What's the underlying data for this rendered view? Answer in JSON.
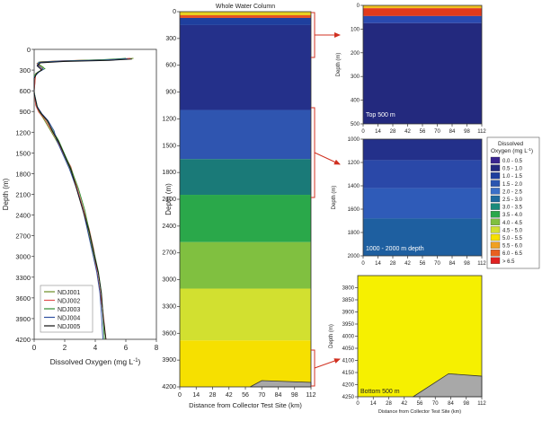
{
  "chart_data": [
    {
      "id": "profile",
      "type": "line",
      "xlabel": "Dissolved Oxygen (mg L",
      "xlabel_sup": "-1",
      "xlabel_close": ")",
      "ylabel": "Depth (m)",
      "xlim": [
        0,
        8
      ],
      "ylim": [
        4200,
        0
      ],
      "xticks": [
        "0",
        "2",
        "4",
        "6",
        "8"
      ],
      "yticks": [
        "0",
        "300",
        "600",
        "900",
        "1200",
        "1500",
        "1800",
        "2100",
        "2400",
        "2700",
        "3000",
        "3300",
        "3600",
        "3900",
        "4200"
      ],
      "series": [
        {
          "name": "NDJ001",
          "color": "#6b8e23",
          "points": [
            [
              6.5,
              130
            ],
            [
              5.0,
              150
            ],
            [
              2.0,
              165
            ],
            [
              0.5,
              180
            ],
            [
              0.2,
              200
            ],
            [
              0.6,
              260
            ],
            [
              0.5,
              300
            ],
            [
              0.1,
              350
            ],
            [
              0.0,
              600
            ],
            [
              0.1,
              800
            ],
            [
              0.3,
              900
            ],
            [
              0.6,
              1000
            ],
            [
              1.0,
              1150
            ],
            [
              1.4,
              1300
            ],
            [
              1.9,
              1500
            ],
            [
              2.3,
              1700
            ],
            [
              2.8,
              2000
            ],
            [
              3.2,
              2300
            ],
            [
              3.5,
              2600
            ],
            [
              3.8,
              2900
            ],
            [
              4.1,
              3200
            ],
            [
              4.3,
              3500
            ],
            [
              4.5,
              3800
            ],
            [
              4.6,
              4200
            ]
          ]
        },
        {
          "name": "NDJ002",
          "color": "#e05050",
          "points": [
            [
              6.3,
              130
            ],
            [
              4.8,
              150
            ],
            [
              1.8,
              165
            ],
            [
              0.4,
              180
            ],
            [
              0.2,
              210
            ],
            [
              0.5,
              270
            ],
            [
              0.4,
              310
            ],
            [
              0.1,
              360
            ],
            [
              0.0,
              610
            ],
            [
              0.1,
              810
            ],
            [
              0.3,
              910
            ],
            [
              0.7,
              1010
            ],
            [
              1.1,
              1160
            ],
            [
              1.5,
              1310
            ],
            [
              1.9,
              1500
            ],
            [
              2.4,
              1700
            ],
            [
              2.8,
              2000
            ],
            [
              3.2,
              2300
            ],
            [
              3.6,
              2600
            ],
            [
              3.9,
              2900
            ],
            [
              4.1,
              3200
            ],
            [
              4.3,
              3500
            ],
            [
              4.5,
              3800
            ],
            [
              4.7,
              4200
            ]
          ]
        },
        {
          "name": "NDJ003",
          "color": "#2e8b2e",
          "points": [
            [
              6.0,
              130
            ],
            [
              4.5,
              150
            ],
            [
              1.5,
              170
            ],
            [
              0.3,
              185
            ],
            [
              0.3,
              220
            ],
            [
              0.7,
              280
            ],
            [
              0.3,
              320
            ],
            [
              0.0,
              380
            ],
            [
              0.0,
              620
            ],
            [
              0.2,
              820
            ],
            [
              0.4,
              920
            ],
            [
              0.8,
              1020
            ],
            [
              1.2,
              1170
            ],
            [
              1.6,
              1320
            ],
            [
              2.0,
              1520
            ],
            [
              2.4,
              1720
            ],
            [
              2.9,
              2020
            ],
            [
              3.3,
              2320
            ],
            [
              3.6,
              2620
            ],
            [
              3.9,
              2920
            ],
            [
              4.2,
              3220
            ],
            [
              4.4,
              3520
            ],
            [
              4.5,
              3820
            ],
            [
              4.6,
              4200
            ]
          ]
        },
        {
          "name": "NDJ004",
          "color": "#3050a0",
          "points": [
            [
              6.1,
              135
            ],
            [
              4.6,
              155
            ],
            [
              1.6,
              170
            ],
            [
              0.3,
              190
            ],
            [
              0.2,
              230
            ],
            [
              0.6,
              290
            ],
            [
              0.3,
              330
            ],
            [
              0.0,
              400
            ],
            [
              0.0,
              630
            ],
            [
              0.2,
              830
            ],
            [
              0.5,
              930
            ],
            [
              0.9,
              1030
            ],
            [
              1.3,
              1180
            ],
            [
              1.5,
              1330
            ],
            [
              1.9,
              1530
            ],
            [
              2.3,
              1730
            ],
            [
              2.8,
              2030
            ],
            [
              3.2,
              2330
            ],
            [
              3.5,
              2630
            ],
            [
              3.8,
              2930
            ],
            [
              4.1,
              3230
            ],
            [
              4.3,
              3530
            ],
            [
              4.4,
              3830
            ],
            [
              4.5,
              4200
            ]
          ]
        },
        {
          "name": "NDJ005",
          "color": "#111111",
          "points": [
            [
              6.4,
              140
            ],
            [
              4.9,
              160
            ],
            [
              1.9,
              175
            ],
            [
              0.4,
              195
            ],
            [
              0.2,
              240
            ],
            [
              0.5,
              300
            ],
            [
              0.2,
              340
            ],
            [
              0.0,
              420
            ],
            [
              0.0,
              640
            ],
            [
              0.2,
              840
            ],
            [
              0.5,
              940
            ],
            [
              0.9,
              1040
            ],
            [
              1.2,
              1190
            ],
            [
              1.6,
              1340
            ],
            [
              2.0,
              1540
            ],
            [
              2.4,
              1740
            ],
            [
              2.8,
              2040
            ],
            [
              3.2,
              2340
            ],
            [
              3.6,
              2640
            ],
            [
              3.9,
              2940
            ],
            [
              4.2,
              3240
            ],
            [
              4.4,
              3540
            ],
            [
              4.5,
              3840
            ],
            [
              4.7,
              4200
            ]
          ]
        }
      ]
    },
    {
      "id": "whole",
      "type": "heatmap",
      "title": "Whole Water Column",
      "xlabel": "Distance from Collector Test Site (km)",
      "ylabel": "Depth (m)",
      "xlim": [
        0,
        112
      ],
      "ylim": [
        4200,
        0
      ],
      "xticks": [
        "0",
        "14",
        "28",
        "42",
        "56",
        "70",
        "84",
        "98",
        "112"
      ],
      "yticks": [
        "0",
        "300",
        "600",
        "900",
        "1200",
        "1500",
        "1800",
        "2100",
        "2400",
        "2700",
        "3000",
        "3300",
        "3600",
        "3900",
        "4200"
      ],
      "bands": [
        {
          "top": 0,
          "bottom": 40,
          "color": "#e8d020"
        },
        {
          "top": 40,
          "bottom": 70,
          "color": "#e85020"
        },
        {
          "top": 70,
          "bottom": 150,
          "color": "#1e3f9e"
        },
        {
          "top": 150,
          "bottom": 1100,
          "color": "#24308a"
        },
        {
          "top": 1100,
          "bottom": 1650,
          "color": "#2f55b0"
        },
        {
          "top": 1650,
          "bottom": 2050,
          "color": "#1a7a78"
        },
        {
          "top": 2050,
          "bottom": 2580,
          "color": "#2aa84a"
        },
        {
          "top": 2580,
          "bottom": 3100,
          "color": "#80c040"
        },
        {
          "top": 3100,
          "bottom": 3680,
          "color": "#d2e030"
        },
        {
          "top": 3680,
          "bottom": 4200,
          "color": "#f6e000"
        }
      ],
      "seafloor": [
        [
          60,
          4200
        ],
        [
          70,
          4130
        ],
        [
          112,
          4150
        ],
        [
          112,
          4200
        ]
      ]
    },
    {
      "id": "top500",
      "type": "heatmap",
      "label": "Top 500 m",
      "ylabel": "Depth (m)",
      "xlim": [
        0,
        112
      ],
      "ylim": [
        500,
        0
      ],
      "xticks": [
        "0",
        "14",
        "28",
        "42",
        "56",
        "70",
        "84",
        "98",
        "112"
      ],
      "yticks": [
        "0",
        "100",
        "200",
        "300",
        "400",
        "500"
      ],
      "bands": [
        {
          "top": 0,
          "bottom": 12,
          "color": "#f0c020"
        },
        {
          "top": 12,
          "bottom": 45,
          "color": "#e23a1c"
        },
        {
          "top": 45,
          "bottom": 75,
          "color": "#2a4ab0"
        },
        {
          "top": 75,
          "bottom": 500,
          "color": "#23297e"
        }
      ]
    },
    {
      "id": "mid",
      "type": "heatmap",
      "label": "1000 - 2000 m depth",
      "ylabel": "Depth (m)",
      "xlim": [
        0,
        112
      ],
      "ylim": [
        2000,
        1000
      ],
      "xticks": [
        "0",
        "14",
        "28",
        "42",
        "56",
        "70",
        "84",
        "98",
        "112"
      ],
      "yticks": [
        "1000",
        "1200",
        "1400",
        "1600",
        "1800",
        "2000"
      ],
      "bands": [
        {
          "top": 1000,
          "bottom": 1180,
          "color": "#23308a"
        },
        {
          "top": 1180,
          "bottom": 1420,
          "color": "#2a48a8"
        },
        {
          "top": 1420,
          "bottom": 1680,
          "color": "#2f5bb8"
        },
        {
          "top": 1680,
          "bottom": 2000,
          "color": "#1e5fa0"
        }
      ]
    },
    {
      "id": "bottom",
      "type": "heatmap",
      "label": "Bottom 500 m",
      "xlabel": "Distance from Collector Test Site (km)",
      "ylabel": "Depth (m)",
      "xlim": [
        0,
        112
      ],
      "ylim": [
        4250,
        3750
      ],
      "xticks": [
        "0",
        "14",
        "28",
        "42",
        "56",
        "70",
        "84",
        "98",
        "112"
      ],
      "yticks": [
        "3800",
        "3850",
        "3900",
        "3950",
        "4000",
        "4050",
        "4100",
        "4150",
        "4200",
        "4250"
      ],
      "bands": [
        {
          "top": 3750,
          "bottom": 4250,
          "color": "#f6f000"
        }
      ],
      "seafloor": [
        [
          50,
          4250
        ],
        [
          82,
          4155
        ],
        [
          112,
          4165
        ],
        [
          112,
          4250
        ]
      ]
    }
  ],
  "legend": {
    "title_line1": "Dissolved",
    "title_line2": "Oxygen (mg L",
    "title_sup": "-1",
    "title_close": ")",
    "items": [
      {
        "label": "0.0 - 0.5",
        "color": "#3a2590"
      },
      {
        "label": "0.5 - 1.0",
        "color": "#23297e"
      },
      {
        "label": "1.0 - 1.5",
        "color": "#1e3f9e"
      },
      {
        "label": "1.5 - 2.0",
        "color": "#2a55b0"
      },
      {
        "label": "2.0 - 2.5",
        "color": "#3a6fc8"
      },
      {
        "label": "2.5 - 3.0",
        "color": "#1e6a9e"
      },
      {
        "label": "3.0 - 3.5",
        "color": "#1a8a7a"
      },
      {
        "label": "3.5 - 4.0",
        "color": "#2aa84a"
      },
      {
        "label": "4.0 - 4.5",
        "color": "#80c040"
      },
      {
        "label": "4.5 - 5.0",
        "color": "#d2e030"
      },
      {
        "label": "5.0 - 5.5",
        "color": "#f6e000"
      },
      {
        "label": "5.5 - 6.0",
        "color": "#f0a020"
      },
      {
        "label": "6.0 - 6.5",
        "color": "#e86020"
      },
      {
        "label": "> 6.5",
        "color": "#e02020"
      }
    ]
  }
}
